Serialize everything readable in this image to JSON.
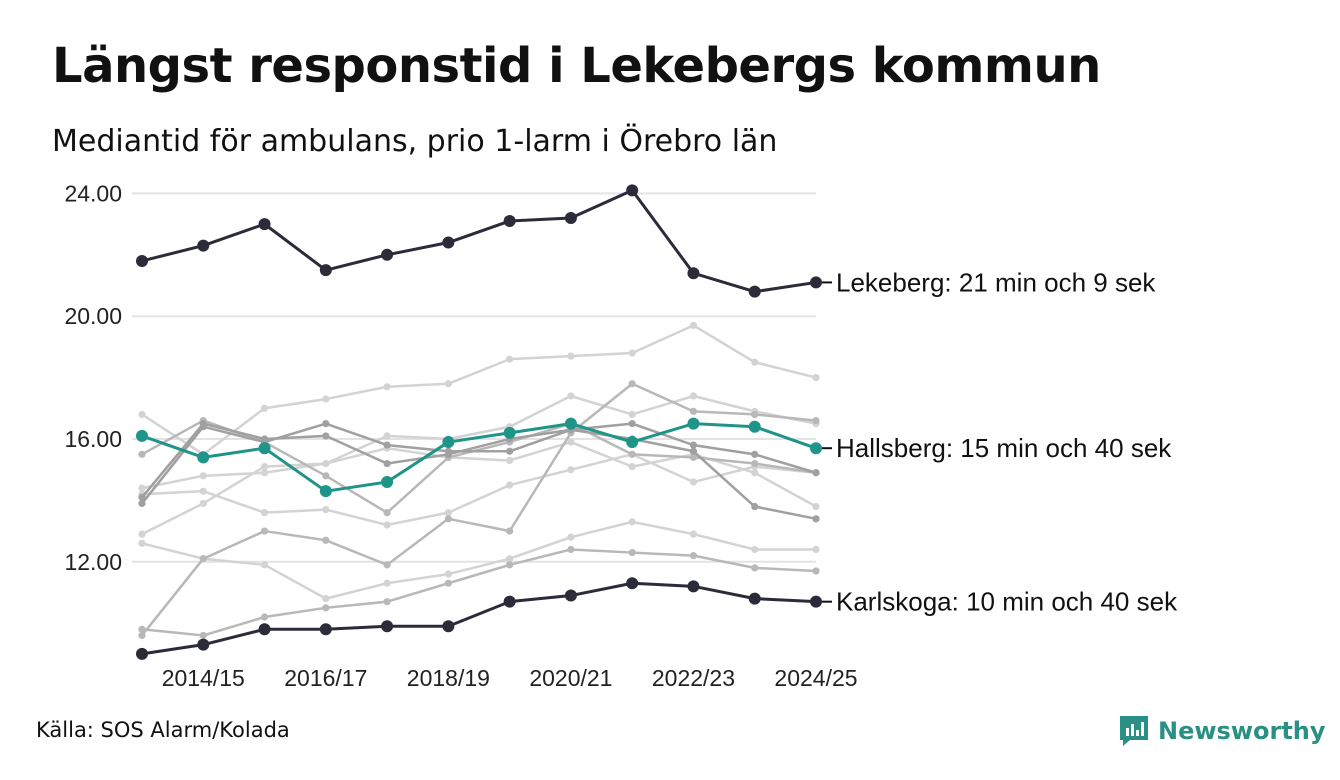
{
  "title": "Längst responstid i Lekebergs kommun",
  "subtitle": "Mediantid för ambulans, prio 1-larm i Örebro län",
  "source": "Källa: SOS Alarm/Kolada",
  "brand": "Newsworthy",
  "colors": {
    "dark": "#2b2b3a",
    "teal": "#1f9488",
    "grey_light": "#d3d3d3",
    "grey_mid": "#b8b8b8",
    "grey_dark": "#a0a0a0",
    "grid": "#e3e3e3",
    "brand": "#2a8f84"
  },
  "chart_data": {
    "type": "line",
    "title": "Längst responstid i Lekebergs kommun",
    "subtitle": "Mediantid för ambulans, prio 1-larm i Örebro län",
    "xlabel": "",
    "ylabel": "",
    "ylim": [
      8.8,
      24.6
    ],
    "yticks": [
      12,
      16,
      20,
      24
    ],
    "ytick_labels": [
      "12.00",
      "16.00",
      "20.00",
      "24.00"
    ],
    "x": [
      "2013/14",
      "2014/15",
      "2015/16",
      "2016/17",
      "2017/18",
      "2018/19",
      "2019/20",
      "2020/21",
      "2021/22",
      "2022/23",
      "2023/24",
      "2024/25"
    ],
    "xtick_labels": [
      "2014/15",
      "2016/17",
      "2018/19",
      "2020/21",
      "2022/23",
      "2024/25"
    ],
    "series": [
      {
        "name": "g1",
        "style": "light",
        "values": [
          12.9,
          13.9,
          15.1,
          15.2,
          16.1,
          16.0,
          16.4,
          17.4,
          16.8,
          17.4,
          16.9,
          16.5
        ]
      },
      {
        "name": "g2",
        "style": "light",
        "values": [
          16.8,
          15.5,
          17.0,
          17.3,
          17.7,
          17.8,
          18.6,
          18.7,
          18.8,
          19.7,
          18.5,
          18.0
        ]
      },
      {
        "name": "g3",
        "style": "light",
        "values": [
          14.4,
          14.8,
          14.9,
          15.2,
          15.7,
          15.4,
          15.3,
          15.9,
          15.1,
          15.5,
          14.9,
          13.8
        ]
      },
      {
        "name": "g4",
        "style": "light",
        "values": [
          12.6,
          12.1,
          11.9,
          10.8,
          11.3,
          11.6,
          12.1,
          12.8,
          13.3,
          12.9,
          12.4,
          12.4
        ]
      },
      {
        "name": "g5",
        "style": "light",
        "values": [
          14.2,
          14.3,
          13.6,
          13.7,
          13.2,
          13.6,
          14.5,
          15.0,
          15.5,
          14.6,
          15.1,
          14.9
        ]
      },
      {
        "name": "g6",
        "style": "mid",
        "values": [
          15.5,
          16.6,
          15.9,
          14.8,
          13.6,
          15.4,
          15.9,
          16.5,
          15.5,
          15.4,
          15.2,
          14.9
        ]
      },
      {
        "name": "g7",
        "style": "mid",
        "values": [
          9.8,
          9.6,
          10.2,
          10.5,
          10.7,
          11.3,
          11.9,
          12.4,
          12.3,
          12.2,
          11.8,
          11.7
        ]
      },
      {
        "name": "g8",
        "style": "mid",
        "values": [
          9.6,
          12.1,
          13.0,
          12.7,
          11.9,
          13.4,
          13.0,
          16.2,
          17.8,
          16.9,
          16.8,
          16.6
        ]
      },
      {
        "name": "g9",
        "style": "dark",
        "values": [
          13.9,
          16.4,
          15.9,
          16.5,
          15.8,
          15.6,
          15.6,
          16.3,
          16.5,
          15.8,
          15.5,
          14.9
        ]
      },
      {
        "name": "g10",
        "style": "dark",
        "values": [
          14.1,
          16.5,
          16.0,
          16.1,
          15.2,
          15.5,
          16.0,
          16.3,
          16.0,
          15.6,
          13.8,
          13.4
        ]
      },
      {
        "name": "Hallsberg",
        "style": "teal",
        "values": [
          16.1,
          15.4,
          15.7,
          14.3,
          14.6,
          15.9,
          16.2,
          16.5,
          15.9,
          16.5,
          16.4,
          15.7
        ]
      },
      {
        "name": "Karlskoga",
        "style": "black",
        "values": [
          9.0,
          9.3,
          9.8,
          9.8,
          9.9,
          9.9,
          10.7,
          10.9,
          11.3,
          11.2,
          10.8,
          10.7
        ]
      },
      {
        "name": "Lekeberg",
        "style": "black",
        "values": [
          21.8,
          22.3,
          23.0,
          21.5,
          22.0,
          22.4,
          23.1,
          23.2,
          24.1,
          21.4,
          20.8,
          21.1
        ]
      }
    ],
    "annotations": [
      {
        "series": "Lekeberg",
        "text": "Lekeberg: 21 min och 9 sek"
      },
      {
        "series": "Hallsberg",
        "text": "Hallsberg: 15 min och 40 sek"
      },
      {
        "series": "Karlskoga",
        "text": "Karlskoga: 10 min och 40 sek"
      }
    ]
  }
}
